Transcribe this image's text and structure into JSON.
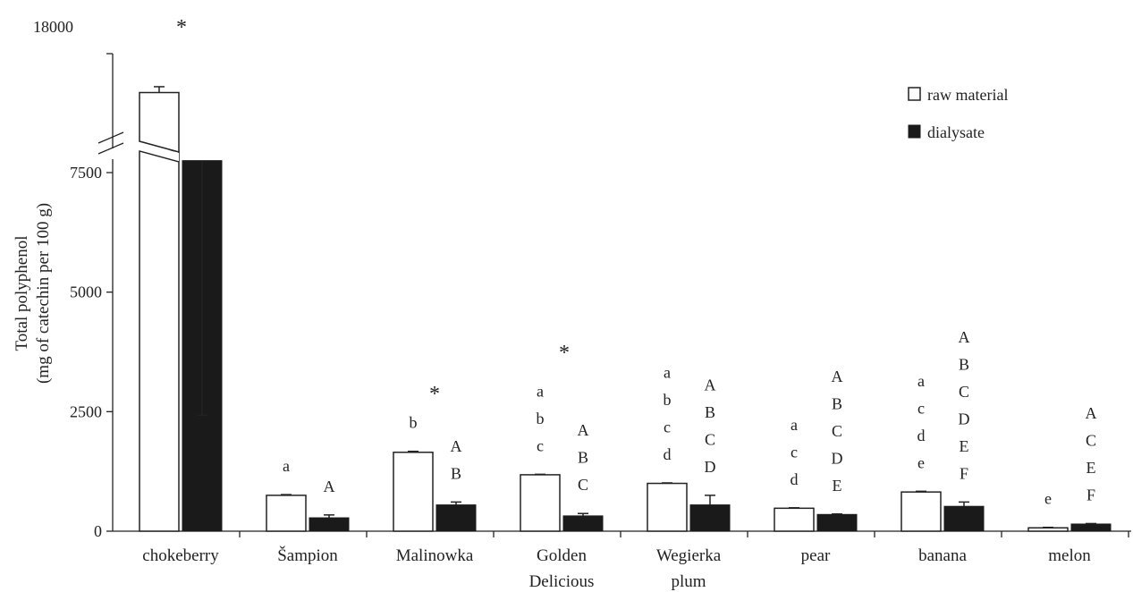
{
  "chart_data": {
    "type": "bar",
    "ylabel": [
      "Total polyphenol",
      "(mg of catechin per 100 g)"
    ],
    "y_ticks": [
      0,
      2500,
      5000,
      7500
    ],
    "y_break_tick": 18000,
    "axis_break": {
      "lower_max": 7950,
      "upper_min": 15700,
      "upper_max": 18000
    },
    "categories": [
      [
        "chokeberry"
      ],
      [
        "Šampion"
      ],
      [
        "Malinowka"
      ],
      [
        "Golden",
        "Delicious"
      ],
      [
        "Wegierka",
        "plum"
      ],
      [
        "pear"
      ],
      [
        "banana"
      ],
      [
        "melon"
      ]
    ],
    "legend": {
      "position": "top-right"
    },
    "series": [
      {
        "name": "raw material",
        "color": "#ffffff",
        "values": [
          17000,
          750,
          1650,
          1180,
          1000,
          480,
          820,
          70
        ],
        "errors": [
          150,
          15,
          20,
          10,
          10,
          10,
          15,
          10
        ],
        "letters": [
          [],
          [
            "a"
          ],
          [
            "b"
          ],
          [
            "a",
            "b",
            "c"
          ],
          [
            "a",
            "b",
            "c",
            "d"
          ],
          [
            "a",
            "c",
            "d"
          ],
          [
            "a",
            "c",
            "d",
            "e"
          ],
          [
            "e"
          ]
        ]
      },
      {
        "name": "dialysate",
        "color": "#1a1a1a",
        "values": [
          7750,
          280,
          550,
          320,
          550,
          350,
          520,
          150
        ],
        "errors": [
          950,
          60,
          60,
          50,
          200,
          10,
          90,
          10
        ],
        "letters": [
          [],
          [
            "A"
          ],
          [
            "A",
            "B"
          ],
          [
            "A",
            "B",
            "C"
          ],
          [
            "A",
            "B",
            "C",
            "D"
          ],
          [
            "A",
            "B",
            "C",
            "D",
            "E"
          ],
          [
            "A",
            "B",
            "C",
            "D",
            "E",
            "F"
          ],
          [
            "A",
            "C",
            "E",
            "F"
          ]
        ]
      }
    ],
    "significance_marker": "*",
    "significant_categories": [
      0,
      2,
      3
    ]
  }
}
